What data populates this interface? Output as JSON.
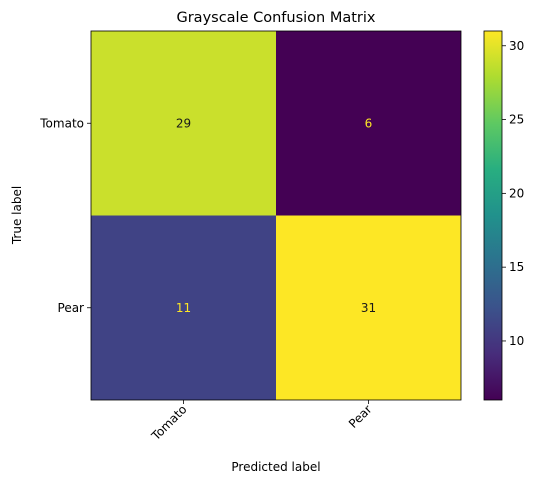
{
  "chart_data": {
    "type": "heatmap",
    "title": "Grayscale Confusion Matrix",
    "xlabel": "Predicted label",
    "ylabel": "True label",
    "x_categories": [
      "Tomato",
      "Pear"
    ],
    "y_categories": [
      "Tomato",
      "Pear"
    ],
    "values": [
      [
        29,
        6
      ],
      [
        11,
        31
      ]
    ],
    "colormap": "viridis",
    "colorbar": {
      "vmin": 6,
      "vmax": 31,
      "ticks": [
        "10",
        "15",
        "20",
        "25",
        "30"
      ]
    },
    "grid": false,
    "x_tick_rotation_deg": 45
  }
}
